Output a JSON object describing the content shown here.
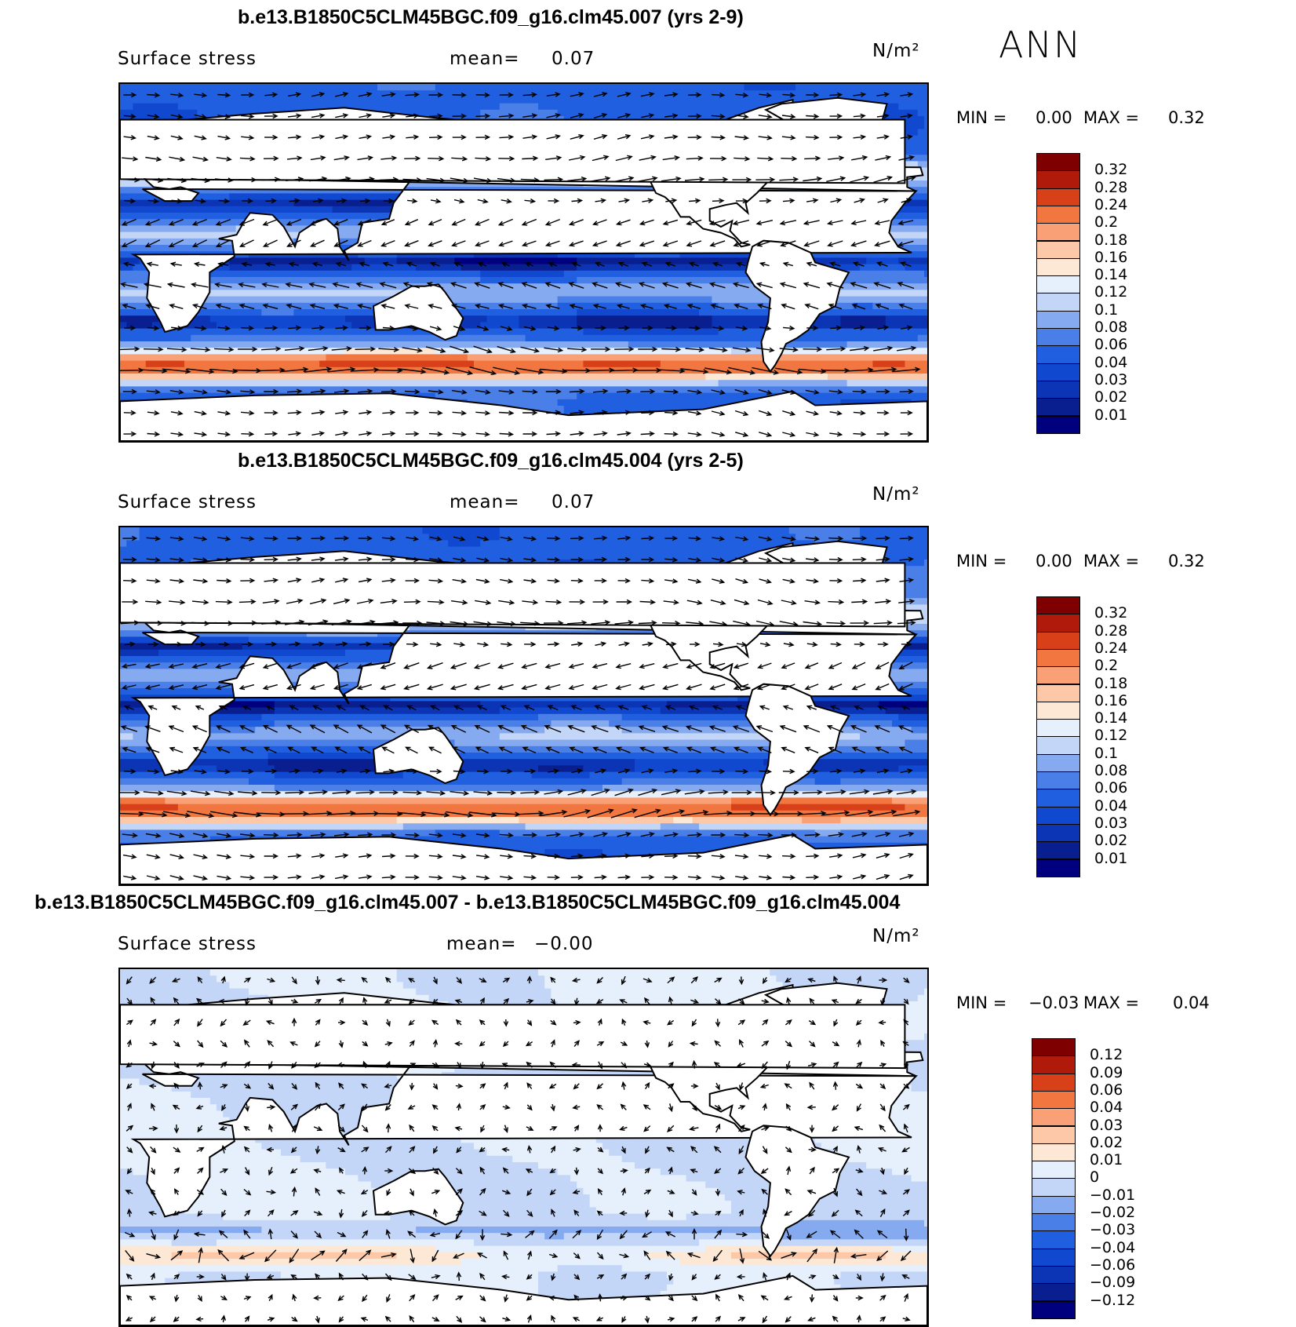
{
  "season_label": "ANN",
  "panels": [
    {
      "title": "b.e13.B1850C5CLM45BGC.f09_g16.clm45.007 (yrs 2-9)",
      "variable": "Surface stress",
      "mean_label": "mean=",
      "mean_value": "0.07",
      "units": "N/m²",
      "min_label": "MIN =",
      "min_value": "0.00",
      "max_label": "MAX =",
      "max_value": "0.32",
      "colorbar_ticks": [
        "0.32",
        "0.28",
        "0.24",
        "0.2",
        "0.18",
        "0.16",
        "0.14",
        "0.12",
        "0.1",
        "0.08",
        "0.06",
        "0.04",
        "0.03",
        "0.02",
        "0.01"
      ]
    },
    {
      "title": "b.e13.B1850C5CLM45BGC.f09_g16.clm45.004 (yrs 2-5)",
      "variable": "Surface stress",
      "mean_label": "mean=",
      "mean_value": "0.07",
      "units": "N/m²",
      "min_label": "MIN =",
      "min_value": "0.00",
      "max_label": "MAX =",
      "max_value": "0.32",
      "colorbar_ticks": [
        "0.32",
        "0.28",
        "0.24",
        "0.2",
        "0.18",
        "0.16",
        "0.14",
        "0.12",
        "0.1",
        "0.08",
        "0.06",
        "0.04",
        "0.03",
        "0.02",
        "0.01"
      ]
    },
    {
      "title": "b.e13.B1850C5CLM45BGC.f09_g16.clm45.007 - b.e13.B1850C5CLM45BGC.f09_g16.clm45.004",
      "variable": "Surface stress",
      "mean_label": "mean=",
      "mean_value": "−0.00",
      "units": "N/m²",
      "min_label": "MIN =",
      "min_value": "−0.03",
      "max_label": "MAX =",
      "max_value": "0.04",
      "colorbar_ticks": [
        "0.12",
        "0.09",
        "0.06",
        "0.04",
        "0.03",
        "0.02",
        "0.01",
        "0",
        "−0.01",
        "−0.02",
        "−0.03",
        "−0.04",
        "−0.06",
        "−0.09",
        "−0.12"
      ]
    }
  ],
  "chart_data": [
    {
      "type": "heatmap",
      "title": "b.e13.B1850C5CLM45BGC.f09_g16.clm45.007 (yrs 2-9)",
      "variable": "Surface stress",
      "units": "N/m²",
      "mean": 0.07,
      "min": 0.0,
      "max": 0.32,
      "contour_levels": [
        0.01,
        0.02,
        0.03,
        0.04,
        0.06,
        0.08,
        0.1,
        0.12,
        0.14,
        0.16,
        0.18,
        0.2,
        0.24,
        0.28,
        0.32
      ],
      "colors": [
        "#00007f",
        "#0a1f8f",
        "#0b35b5",
        "#1148d0",
        "#2060e0",
        "#4a7fe8",
        "#86aaf0",
        "#c3d6f8",
        "#e6f0fc",
        "#fde7d5",
        "#fcc8a8",
        "#f9a077",
        "#f27640",
        "#d8401a",
        "#b01a0a",
        "#7f0000"
      ],
      "field": "wind stress vectors over ocean; strongest (0.18–0.26) in Southern Ocean westerly belt"
    },
    {
      "type": "heatmap",
      "title": "b.e13.B1850C5CLM45BGC.f09_g16.clm45.004 (yrs 2-5)",
      "variable": "Surface stress",
      "units": "N/m²",
      "mean": 0.07,
      "min": 0.0,
      "max": 0.32,
      "contour_levels": [
        0.01,
        0.02,
        0.03,
        0.04,
        0.06,
        0.08,
        0.1,
        0.12,
        0.14,
        0.16,
        0.18,
        0.2,
        0.24,
        0.28,
        0.32
      ],
      "colors": [
        "#00007f",
        "#0a1f8f",
        "#0b35b5",
        "#1148d0",
        "#2060e0",
        "#4a7fe8",
        "#86aaf0",
        "#c3d6f8",
        "#e6f0fc",
        "#fde7d5",
        "#fcc8a8",
        "#f9a077",
        "#f27640",
        "#d8401a",
        "#b01a0a",
        "#7f0000"
      ]
    },
    {
      "type": "heatmap",
      "title": "b.e13.B1850C5CLM45BGC.f09_g16.clm45.007 - b.e13.B1850C5CLM45BGC.f09_g16.clm45.004",
      "variable": "Surface stress",
      "units": "N/m²",
      "mean": -0.0,
      "min": -0.03,
      "max": 0.04,
      "contour_levels": [
        -0.12,
        -0.09,
        -0.06,
        -0.04,
        -0.03,
        -0.02,
        -0.01,
        0,
        0.01,
        0.02,
        0.03,
        0.04,
        0.06,
        0.09,
        0.12
      ],
      "colors": [
        "#00007f",
        "#0a1f8f",
        "#0b35b5",
        "#1148d0",
        "#2060e0",
        "#4a7fe8",
        "#86aaf0",
        "#c3d6f8",
        "#e6f0fc",
        "#fde7d5",
        "#fcc8a8",
        "#f9a077",
        "#f27640",
        "#d8401a",
        "#b01a0a",
        "#7f0000"
      ]
    }
  ]
}
